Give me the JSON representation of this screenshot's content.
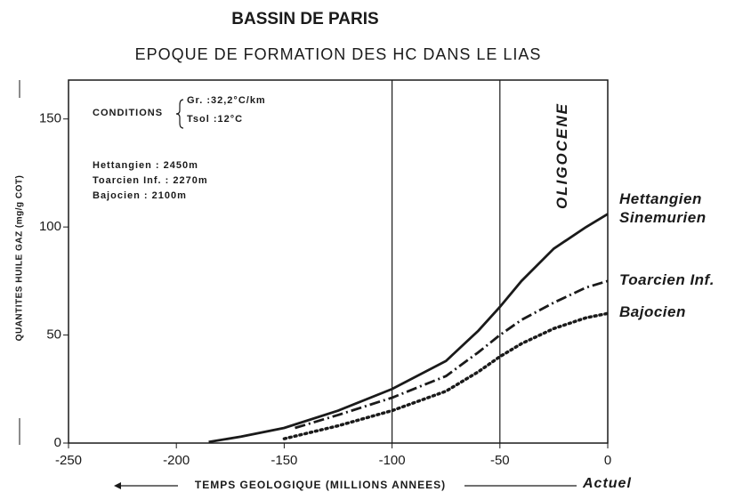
{
  "chart_data": {
    "type": "line",
    "title": "BASSIN DE PARIS",
    "subtitle": "EPOQUE DE FORMATION DES HC DANS LE LIAS",
    "x_label": "TEMPS GEOLOGIQUE (MILLIONS ANNEES)",
    "x_end_label": "Actuel",
    "y_label": "QUANTITES HUILE GAZ (mg/g COT)",
    "xlim": [
      -250,
      0
    ],
    "ylim": [
      0,
      168
    ],
    "xticks": [
      -250,
      -200,
      -150,
      -100,
      -50,
      0
    ],
    "yticks": [
      0,
      50,
      100,
      150
    ],
    "vlines": [
      -100,
      -50
    ],
    "period_label": "OLIGOCENE",
    "conditions": {
      "title": "CONDITIONS",
      "lines": [
        "Gr.  :32,2°C/km",
        "Tsol :12°C"
      ]
    },
    "depths": [
      "Hettangien : 2450m",
      "Toarcien Inf. : 2270m",
      "Bajocien : 2100m"
    ],
    "series": [
      {
        "name": "Hettangien Sinemurien",
        "color": "#1a1a1a",
        "style": "solid",
        "x": [
          -185,
          -170,
          -150,
          -125,
          -100,
          -75,
          -60,
          -50,
          -40,
          -25,
          -10,
          0
        ],
        "values": [
          0.5,
          3,
          7,
          15,
          25,
          38,
          52,
          63,
          75,
          90,
          100,
          106
        ]
      },
      {
        "name": "Toarcien Inf.",
        "color": "#1a1a1a",
        "style": "dashdot",
        "x": [
          -145,
          -125,
          -100,
          -75,
          -60,
          -50,
          -40,
          -25,
          -10,
          0
        ],
        "values": [
          7,
          13,
          21,
          31,
          42,
          50,
          57,
          65,
          72,
          75
        ]
      },
      {
        "name": "Bajocien",
        "color": "#1a1a1a",
        "style": "dot",
        "x": [
          -150,
          -125,
          -100,
          -75,
          -60,
          -50,
          -40,
          -25,
          -10,
          0
        ],
        "values": [
          2,
          8,
          15,
          24,
          33,
          40,
          46,
          53,
          58,
          60
        ]
      }
    ]
  }
}
